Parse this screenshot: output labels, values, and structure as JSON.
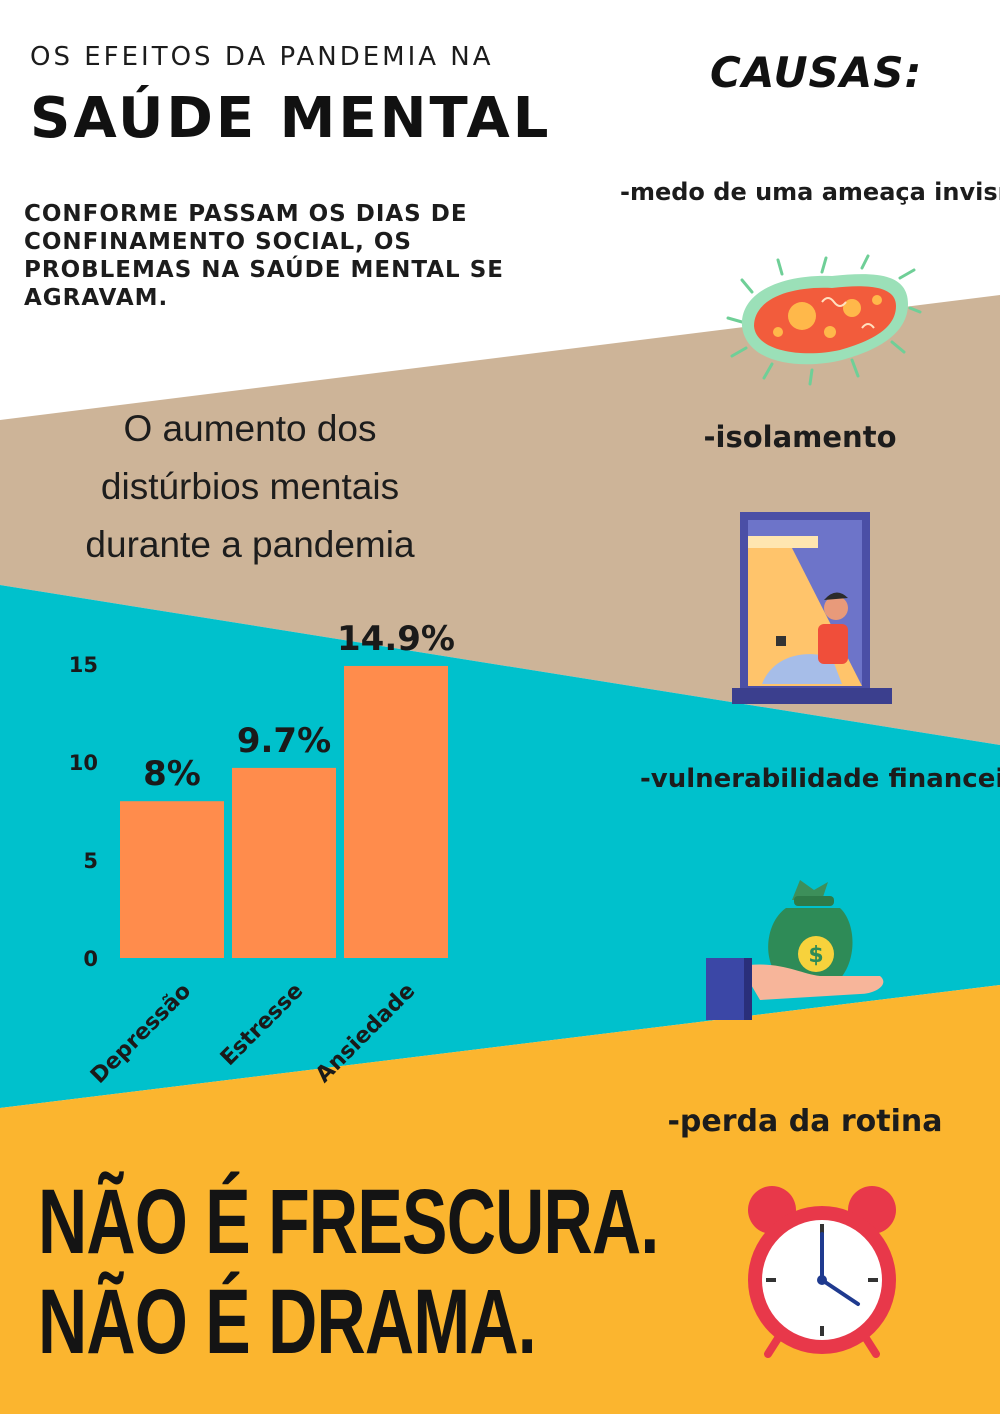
{
  "header": {
    "kicker": "OS EFEITOS DA PANDEMIA NA",
    "title": "SAÚDE MENTAL",
    "intro": "CONFORME PASSAM OS DIAS DE CONFINAMENTO SOCIAL, OS PROBLEMAS NA SAÚDE MENTAL SE AGRAVAM."
  },
  "causes": {
    "heading": "CAUSAS:",
    "items": [
      {
        "label": "-medo de uma ameaça invisível",
        "icon": "virus-icon"
      },
      {
        "label": "-isolamento",
        "icon": "window-person-icon"
      },
      {
        "label": "-vulnerabilidade financeira",
        "icon": "money-bag-icon"
      },
      {
        "label": "-perda da rotina",
        "icon": "alarm-clock-icon"
      }
    ]
  },
  "chart_data": {
    "type": "bar",
    "title": "O aumento dos distúrbios  mentais durante a pandemia",
    "categories": [
      "Depressão",
      "Estresse",
      "Ansiedade"
    ],
    "values": [
      8,
      9.7,
      14.9
    ],
    "data_labels": [
      "8%",
      "9.7%",
      "14.9%"
    ],
    "ylim": [
      0,
      15
    ],
    "yticks": [
      0,
      5,
      10,
      15
    ],
    "grid": false,
    "bar_color": "#ff8c4c"
  },
  "footer": {
    "line1": "NÃO É FRESCURA.",
    "line2": "NÃO É DRAMA."
  },
  "colors": {
    "background": "#ffffff",
    "band_tan": "#cdb498",
    "band_teal": "#00c1cc",
    "band_yellow": "#fbb52f"
  }
}
